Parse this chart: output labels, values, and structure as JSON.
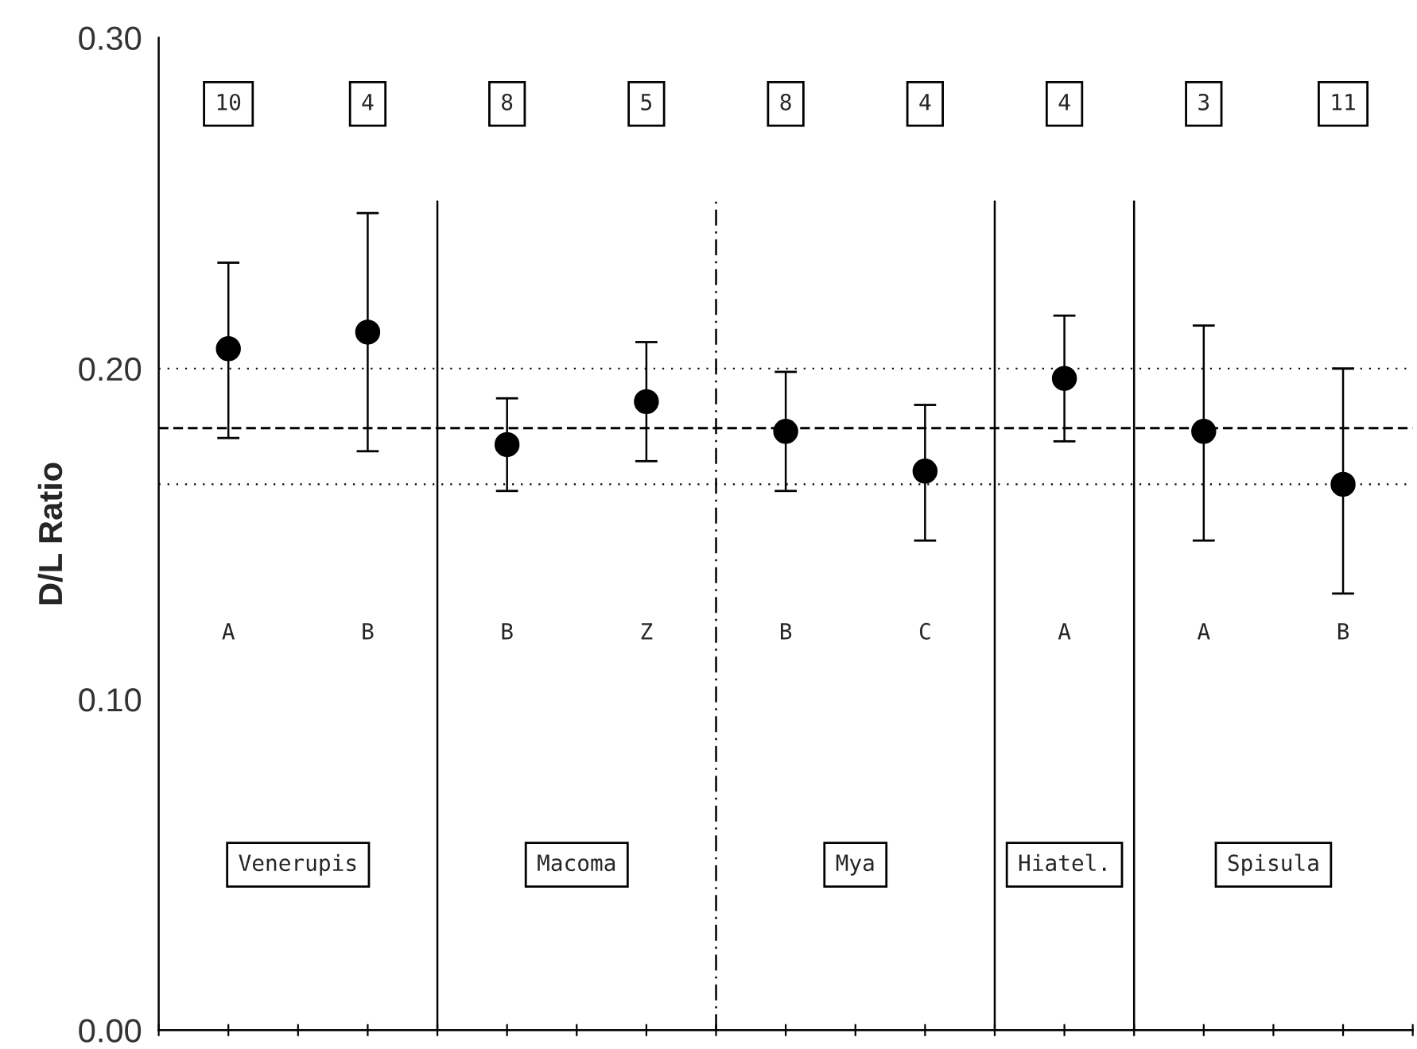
{
  "chart_data": {
    "type": "scatter",
    "ylabel": "D/L Ratio",
    "categories": [
      null,
      null,
      null,
      null,
      null,
      null,
      null,
      null,
      null
    ],
    "series": [
      {
        "color": "#000000",
        "values": [
          0.206,
          0.211,
          0.177,
          0.19,
          0.181,
          0.169,
          0.197,
          0.181,
          0.165
        ],
        "errors": [
          [
            0.179,
            0.232
          ],
          [
            0.175,
            0.247
          ],
          [
            0.163,
            0.191
          ],
          [
            0.172,
            0.208
          ],
          [
            0.163,
            0.199
          ],
          [
            0.148,
            0.189
          ],
          [
            0.178,
            0.216
          ],
          [
            0.148,
            0.213
          ],
          [
            0.132,
            0.2
          ]
        ]
      }
    ],
    "marker": "circle",
    "ylim": [
      0,
      0.3
    ],
    "yticks": [
      {
        "value": 0,
        "label": "0.00"
      },
      {
        "value": 0.1,
        "label": "0.10"
      },
      {
        "value": 0.2,
        "label": "0.20"
      },
      {
        "value": 0.3,
        "label": "0.30"
      }
    ],
    "ref_lines": [
      {
        "axis": "y",
        "value": 0.182,
        "line_style": "dashed"
      },
      {
        "axis": "y",
        "value": 0.2,
        "line_style": "dotted"
      },
      {
        "axis": "y",
        "value": 0.165,
        "line_style": "dotted"
      }
    ],
    "annotations": [
      "10",
      "4",
      "8",
      "5",
      "8",
      "4",
      "4",
      "3",
      "11",
      "A",
      "B",
      "B",
      "Z",
      "B",
      "C",
      "A",
      "A",
      "B",
      "Venerupis",
      "Macoma",
      "Mya",
      "Hiatel.",
      "Spisula"
    ],
    "grid": false,
    "legend": false
  }
}
